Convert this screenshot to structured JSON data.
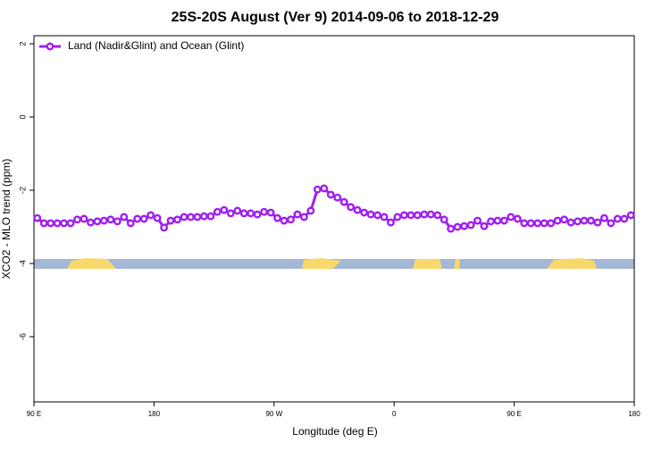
{
  "chart_data": {
    "type": "line",
    "title": "25S-20S August (Ver 9)   2014-09-06 to 2018-12-29",
    "x_label": "Longitude (deg E)",
    "y_label": "XCO2 - MLO trend (ppm)",
    "legend_position": "topleft",
    "x": [
      92.5,
      97.5,
      102.5,
      107.5,
      112.5,
      117.5,
      122.5,
      127.5,
      132.5,
      137.5,
      142.5,
      147.5,
      152.5,
      157.5,
      162.5,
      167.5,
      172.5,
      177.5,
      182.5,
      187.5,
      192.5,
      197.5,
      202.5,
      207.5,
      212.5,
      217.5,
      222.5,
      227.5,
      232.5,
      237.5,
      242.5,
      247.5,
      252.5,
      257.5,
      262.5,
      267.5,
      272.5,
      277.5,
      282.5,
      287.5,
      292.5,
      297.5,
      302.5,
      307.5,
      312.5,
      317.5,
      322.5,
      327.5,
      332.5,
      337.5,
      342.5,
      347.5,
      352.5,
      357.5,
      362.5,
      367.5,
      372.5,
      377.5,
      382.5,
      387.5,
      392.5,
      397.5,
      402.5,
      407.5,
      412.5,
      417.5,
      422.5,
      427.5,
      432.5,
      437.5,
      442.5,
      447.5,
      452.5,
      457.5,
      462.5,
      467.5,
      472.5,
      477.5,
      482.5,
      487.5,
      492.5,
      497.5,
      502.5,
      507.5,
      512.5,
      517.5,
      522.5,
      527.5,
      532.5,
      537.5
    ],
    "series": [
      {
        "name": "Land (Nadir&Glint) and Ocean (Glint)",
        "color": "#a020f0",
        "values": [
          -2.76,
          -2.9,
          -2.9,
          -2.9,
          -2.9,
          -2.9,
          -2.8,
          -2.78,
          -2.88,
          -2.85,
          -2.83,
          -2.8,
          -2.85,
          -2.73,
          -2.9,
          -2.78,
          -2.78,
          -2.68,
          -2.76,
          -3.02,
          -2.83,
          -2.8,
          -2.73,
          -2.73,
          -2.73,
          -2.71,
          -2.71,
          -2.59,
          -2.54,
          -2.63,
          -2.56,
          -2.63,
          -2.63,
          -2.66,
          -2.59,
          -2.61,
          -2.76,
          -2.83,
          -2.8,
          -2.66,
          -2.73,
          -2.56,
          -1.98,
          -1.95,
          -2.12,
          -2.2,
          -2.32,
          -2.46,
          -2.54,
          -2.61,
          -2.66,
          -2.68,
          -2.73,
          -2.88,
          -2.73,
          -2.68,
          -2.68,
          -2.68,
          -2.66,
          -2.66,
          -2.68,
          -2.8,
          -3.05,
          -3.0,
          -2.98,
          -2.95,
          -2.83,
          -2.98,
          -2.85,
          -2.83,
          -2.83,
          -2.73,
          -2.78,
          -2.9,
          -2.9,
          -2.9,
          -2.9,
          -2.9,
          -2.83,
          -2.8,
          -2.88,
          -2.85,
          -2.83,
          -2.83,
          -2.88,
          -2.76,
          -2.9,
          -2.78,
          -2.78,
          -2.68
        ]
      }
    ],
    "xlim": [
      90,
      540
    ],
    "xticks": [
      {
        "value": 90,
        "label": "90 E"
      },
      180,
      {
        "value": 270,
        "label": "90 W"
      },
      {
        "value": 360,
        "label": "0"
      },
      {
        "value": 450,
        "label": "90 E"
      },
      {
        "value": 540,
        "label": "180"
      }
    ],
    "ylim": [
      -7.78,
      2.22
    ],
    "yticks": [
      2,
      0,
      -2,
      -4,
      -6
    ]
  }
}
